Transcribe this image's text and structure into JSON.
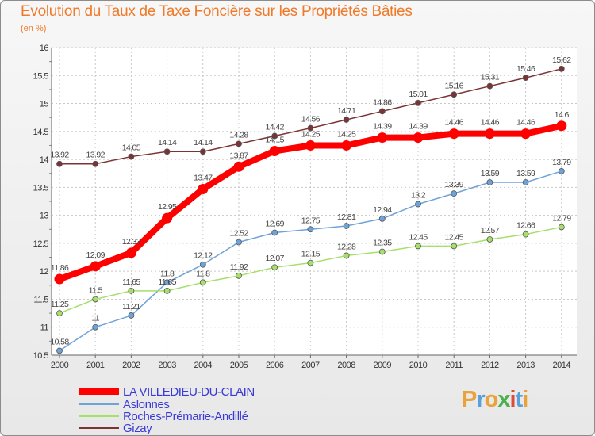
{
  "title": "Evolution du Taux de Taxe Foncière sur les Propriétés Bâties",
  "unit_label": "(en %)",
  "chart_data": {
    "type": "line",
    "title": "Evolution du Taux de Taxe Foncière sur les Propriétés Bâties",
    "ylabel": "(en %)",
    "xlabel": "",
    "x": [
      "2000",
      "2001",
      "2002",
      "2003",
      "2004",
      "2005",
      "2006",
      "2007",
      "2008",
      "2009",
      "2010",
      "2011",
      "2012",
      "2013",
      "2014"
    ],
    "ylim": [
      10.5,
      16
    ],
    "yticks": [
      "10.5",
      "11",
      "11.5",
      "12",
      "12.5",
      "13",
      "13.5",
      "14",
      "14.5",
      "15",
      "15.5",
      "16"
    ],
    "series": [
      {
        "name": "LA VILLEDIEU-DU-CLAIN",
        "color": "#ff0000",
        "values": [
          11.86,
          12.09,
          12.33,
          12.95,
          13.47,
          13.87,
          14.15,
          14.25,
          14.25,
          14.39,
          14.39,
          14.46,
          14.46,
          14.46,
          14.6
        ],
        "labels": [
          "11.86",
          "12.09",
          "12.33",
          "12.95",
          "13.47",
          "13.87",
          "14.15",
          "14.25",
          "14.25",
          "14.39",
          "14.39",
          "14.46",
          "14.46",
          "14.46",
          "14.6"
        ]
      },
      {
        "name": "Aslonnes",
        "color": "#6fa3d8",
        "values": [
          10.58,
          11,
          11.21,
          11.8,
          12.12,
          12.52,
          12.69,
          12.75,
          12.81,
          12.94,
          13.2,
          13.39,
          13.59,
          13.59,
          13.79
        ],
        "labels": [
          "10.58",
          "11",
          "11.21",
          "11.8",
          "12.12",
          "12.52",
          "12.69",
          "12.75",
          "12.81",
          "12.94",
          "13.2",
          "13.39",
          "13.59",
          "13.59",
          "13.79"
        ]
      },
      {
        "name": "Roches-Prémarie-Andillé",
        "color": "#a6df6a",
        "values": [
          11.25,
          11.5,
          11.65,
          11.65,
          11.8,
          11.92,
          12.07,
          12.15,
          12.28,
          12.35,
          12.45,
          12.45,
          12.57,
          12.66,
          12.79
        ],
        "labels": [
          "11.25",
          "11.5",
          "11.65",
          "11.65",
          "11.8",
          "11.92",
          "12.07",
          "12.15",
          "12.28",
          "12.35",
          "12.45",
          "12.45",
          "12.57",
          "12.66",
          "12.79"
        ]
      },
      {
        "name": "Gizay",
        "color": "#7b3434",
        "values": [
          13.92,
          13.92,
          14.05,
          14.14,
          14.14,
          14.28,
          14.42,
          14.56,
          14.71,
          14.86,
          15.01,
          15.16,
          15.31,
          15.46,
          15.62
        ],
        "labels": [
          "13.92",
          "13.92",
          "14.05",
          "14.14",
          "14.14",
          "14.28",
          "14.42",
          "14.56",
          "14.71",
          "14.86",
          "15.01",
          "15.16",
          "15.31",
          "15.46",
          "15.62"
        ]
      }
    ]
  },
  "logo": {
    "letters": [
      "P",
      "r",
      "o",
      "x",
      "i",
      "t",
      "i"
    ],
    "colors": [
      "#e8a33a",
      "#5aa0dc",
      "#e8a33a",
      "#4caf50",
      "#dd4b39",
      "#5aa0dc",
      "#e8a33a"
    ]
  }
}
